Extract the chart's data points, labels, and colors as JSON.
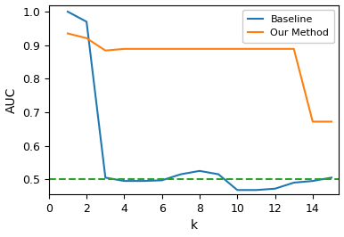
{
  "baseline_k": [
    1,
    2,
    3,
    4,
    5,
    6,
    7,
    8,
    9,
    10,
    11,
    12,
    13,
    14,
    15
  ],
  "baseline_auc": [
    1.0,
    0.97,
    0.505,
    0.495,
    0.495,
    0.497,
    0.515,
    0.525,
    0.515,
    0.468,
    0.468,
    0.472,
    0.49,
    0.495,
    0.505
  ],
  "our_k": [
    1,
    2,
    3,
    4,
    5,
    6,
    7,
    8,
    9,
    10,
    11,
    12,
    13,
    14,
    15
  ],
  "our_auc": [
    0.935,
    0.921,
    0.884,
    0.889,
    0.889,
    0.889,
    0.889,
    0.889,
    0.889,
    0.889,
    0.889,
    0.889,
    0.889,
    0.672,
    0.672
  ],
  "random_line_y": 0.5,
  "baseline_color": "#1f77b4",
  "our_color": "#ff7f0e",
  "random_color": "#2ca02c",
  "xlabel": "k",
  "ylabel": "AUC",
  "xlim": [
    0,
    15.4
  ],
  "ylim": [
    0.455,
    1.02
  ],
  "xticks": [
    0,
    2,
    4,
    6,
    8,
    10,
    12,
    14
  ],
  "yticks": [
    0.5,
    0.6,
    0.7,
    0.8,
    0.9,
    1.0
  ],
  "legend_labels": [
    "Baseline",
    "Our Method"
  ],
  "legend_loc": "upper right"
}
